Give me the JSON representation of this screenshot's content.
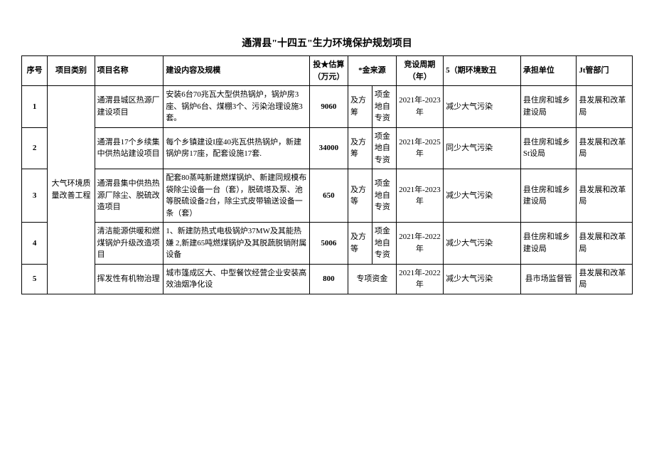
{
  "title": "通渭县\"十四五\"生力环境保护规划项目",
  "headers": {
    "seq": "序号",
    "category": "项目类别",
    "name": "项目名称",
    "content": "建设内容及规模",
    "invest": "投★估算（万元）",
    "fund": "*金来源",
    "period": "竞设周期（年）",
    "env": "5（期环境致丑",
    "unit": "承担单位",
    "mgmt": "Jt管部门"
  },
  "category_merged": "大气环境质量改善工程",
  "rows": [
    {
      "seq": "1",
      "name": "通渭县城区热源厂建设项目",
      "content": "安装6台70兆瓦大型供热锅炉，锅炉房3座、锅炉6台、煤棚3个、污染治理设施3套。",
      "invest": "9060",
      "fund1": "及方筹",
      "fund2": "项金地自专资",
      "period": "2021年-2023年",
      "env": "减少大气污染",
      "unit": "县住房和城乡建设局",
      "mgmt": "县发展和改革局"
    },
    {
      "seq": "2",
      "name": "通渭县17个乡续集中供热站建设项目",
      "content": "每个乡镇建设I座40兆瓦供热锅炉，新建锅炉房17座，配套设施17套.",
      "invest": "34000",
      "fund1": "及方筹",
      "fund2": "项金地自专资",
      "period": "2021年-2025年",
      "env": "同少大气污染",
      "unit": "县住房和城乡St设局",
      "mgmt": "县发展和改革局"
    },
    {
      "seq": "3",
      "name": "通渭县集中供热热源厂除尘、脱硫改造项目",
      "content": "配套80蒸吨新建燃煤锅炉、新建同规模布袋除尘设备一台（套），脱硫塔及泵、池等脱硫设备2台，除尘式皮带输送设备一条（套）",
      "invest": "650",
      "fund1": "及方等",
      "fund2": "项金地自专资",
      "period": "2021年-2023年",
      "env": "减少大气污染",
      "unit": "县住房和城乡建设局",
      "mgmt": "县发展和改革局"
    },
    {
      "seq": "4",
      "name": "清洁能源供暖和燃煤锅炉升级改造项目",
      "content": "1、新建防热式电极锅炉37MW及其能热嫌\n2,新建65吨燃煤锅炉及其脱蔬脱销附属设备",
      "invest": "5006",
      "fund1": "及方等",
      "fund2": "项金地自专资",
      "period": "2021年-2022年",
      "env": "减少大气污染",
      "unit": "县住房和城乡建设局",
      "mgmt": "县发展和改革局"
    },
    {
      "seq": "5",
      "name": "挥发性有机物治理",
      "content": "城市篷成区大、中型餐饮经营企业安装高效油烟净化设",
      "invest": "800",
      "fund_merged": "专项资金",
      "period": "2021年-2022年",
      "env": "减少大气污染",
      "unit": "县市场监督管",
      "mgmt": "县发展和改革局"
    }
  ]
}
